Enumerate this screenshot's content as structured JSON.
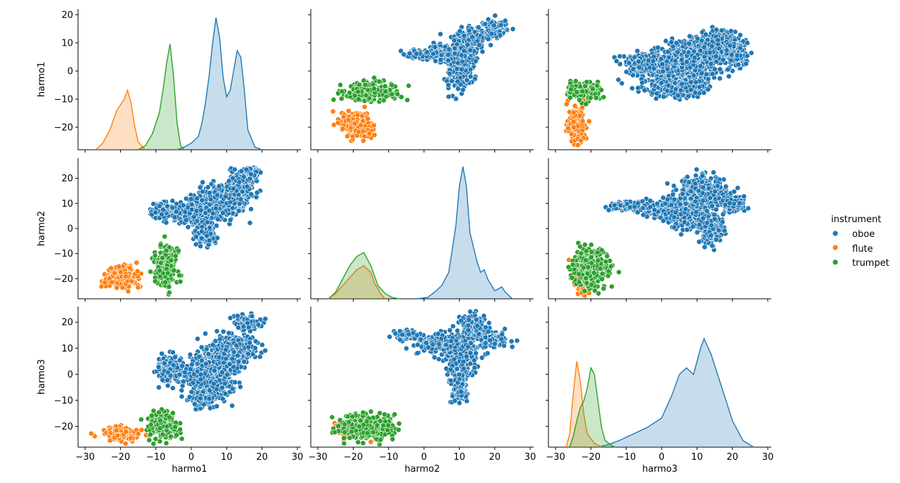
{
  "chart_data": {
    "type": "pairplot",
    "variables": [
      "harmo1",
      "harmo2",
      "harmo3"
    ],
    "hue": "instrument",
    "legend": {
      "title": "instrument",
      "placement": "right-center",
      "entries": [
        {
          "name": "oboe",
          "color": "#1f77b4"
        },
        {
          "name": "flute",
          "color": "#ff7f0e"
        },
        {
          "name": "trumpet",
          "color": "#2ca02c"
        }
      ]
    },
    "axes": {
      "x_ticks": [
        -30,
        -20,
        -10,
        0,
        10,
        20,
        30
      ],
      "harmo1": {
        "range": [
          -28,
          22
        ],
        "ticks": [
          -20,
          -10,
          0,
          10,
          20
        ]
      },
      "harmo2": {
        "range": [
          -28,
          28
        ],
        "ticks": [
          -20,
          -10,
          0,
          10,
          20
        ]
      },
      "harmo3": {
        "range": [
          -28,
          26
        ],
        "ticks": [
          -20,
          -10,
          0,
          10,
          20
        ]
      }
    },
    "diag_kde": {
      "harmo1": {
        "oboe": [
          [
            -4,
            0
          ],
          [
            -2,
            0.02
          ],
          [
            0,
            0.05
          ],
          [
            2,
            0.1
          ],
          [
            3,
            0.2
          ],
          [
            4,
            0.35
          ],
          [
            5,
            0.55
          ],
          [
            6,
            0.8
          ],
          [
            7,
            1.0
          ],
          [
            8,
            0.85
          ],
          [
            9,
            0.55
          ],
          [
            10,
            0.4
          ],
          [
            11,
            0.45
          ],
          [
            12,
            0.6
          ],
          [
            13,
            0.75
          ],
          [
            14,
            0.7
          ],
          [
            15,
            0.45
          ],
          [
            16,
            0.15
          ],
          [
            18,
            0.02
          ],
          [
            20,
            0
          ]
        ],
        "flute": [
          [
            -27,
            0
          ],
          [
            -25,
            0.05
          ],
          [
            -23,
            0.15
          ],
          [
            -21,
            0.3
          ],
          [
            -19,
            0.38
          ],
          [
            -18,
            0.45
          ],
          [
            -17,
            0.35
          ],
          [
            -16,
            0.18
          ],
          [
            -15,
            0.06
          ],
          [
            -13,
            0
          ]
        ],
        "trumpet": [
          [
            -15,
            0
          ],
          [
            -13,
            0.03
          ],
          [
            -11,
            0.12
          ],
          [
            -9,
            0.28
          ],
          [
            -8,
            0.45
          ],
          [
            -7,
            0.65
          ],
          [
            -6,
            0.8
          ],
          [
            -5,
            0.55
          ],
          [
            -4,
            0.2
          ],
          [
            -3,
            0.03
          ],
          [
            -2,
            0
          ]
        ]
      },
      "harmo2": {
        "oboe": [
          [
            -2,
            0
          ],
          [
            1,
            0.01
          ],
          [
            3,
            0.05
          ],
          [
            5,
            0.1
          ],
          [
            7,
            0.2
          ],
          [
            9,
            0.55
          ],
          [
            10,
            0.85
          ],
          [
            11,
            1.0
          ],
          [
            12,
            0.85
          ],
          [
            13,
            0.5
          ],
          [
            15,
            0.28
          ],
          [
            16,
            0.2
          ],
          [
            17,
            0.22
          ],
          [
            18,
            0.15
          ],
          [
            20,
            0.06
          ],
          [
            22,
            0.09
          ],
          [
            23,
            0.05
          ],
          [
            25,
            0
          ]
        ],
        "flute": [
          [
            -27,
            0
          ],
          [
            -25,
            0.04
          ],
          [
            -23,
            0.1
          ],
          [
            -21,
            0.16
          ],
          [
            -19,
            0.22
          ],
          [
            -17,
            0.25
          ],
          [
            -15,
            0.2
          ],
          [
            -14,
            0.12
          ],
          [
            -12,
            0.03
          ],
          [
            -11,
            0
          ]
        ],
        "trumpet": [
          [
            -27,
            0
          ],
          [
            -25,
            0.05
          ],
          [
            -23,
            0.15
          ],
          [
            -21,
            0.25
          ],
          [
            -19,
            0.32
          ],
          [
            -17,
            0.35
          ],
          [
            -15,
            0.25
          ],
          [
            -13,
            0.1
          ],
          [
            -11,
            0.04
          ],
          [
            -9,
            0.01
          ],
          [
            -7,
            0
          ]
        ]
      },
      "harmo3": {
        "oboe": [
          [
            -18,
            0
          ],
          [
            -15,
            0.02
          ],
          [
            -12,
            0.05
          ],
          [
            -8,
            0.1
          ],
          [
            -4,
            0.15
          ],
          [
            0,
            0.22
          ],
          [
            3,
            0.4
          ],
          [
            5,
            0.55
          ],
          [
            7,
            0.6
          ],
          [
            9,
            0.55
          ],
          [
            11,
            0.75
          ],
          [
            12,
            0.82
          ],
          [
            14,
            0.7
          ],
          [
            17,
            0.45
          ],
          [
            20,
            0.2
          ],
          [
            23,
            0.05
          ],
          [
            26,
            0
          ]
        ],
        "flute": [
          [
            -27,
            0
          ],
          [
            -26,
            0.1
          ],
          [
            -25,
            0.4
          ],
          [
            -24,
            0.65
          ],
          [
            -23,
            0.5
          ],
          [
            -22,
            0.25
          ],
          [
            -21,
            0.1
          ],
          [
            -19,
            0.03
          ],
          [
            -17,
            0
          ]
        ],
        "trumpet": [
          [
            -26,
            0
          ],
          [
            -25,
            0.08
          ],
          [
            -24,
            0.2
          ],
          [
            -23,
            0.3
          ],
          [
            -22,
            0.35
          ],
          [
            -21,
            0.45
          ],
          [
            -20,
            0.6
          ],
          [
            -19,
            0.55
          ],
          [
            -18,
            0.35
          ],
          [
            -17,
            0.15
          ],
          [
            -16,
            0.05
          ],
          [
            -14,
            0.01
          ],
          [
            -13,
            0
          ]
        ]
      }
    },
    "scatter_clusters": {
      "oboe": {
        "harmo1-harmo2": [
          [
            7,
            10,
            4,
            4
          ],
          [
            12,
            13,
            3,
            3
          ],
          [
            14,
            17,
            2,
            3
          ],
          [
            17,
            22,
            1.5,
            1.5
          ],
          [
            0,
            6,
            3,
            3
          ],
          [
            4,
            -2,
            1.5,
            3
          ],
          [
            -8,
            7,
            2,
            2
          ]
        ],
        "harmo1-harmo3": [
          [
            5,
            0,
            4,
            6
          ],
          [
            10,
            7,
            3,
            4
          ],
          [
            13,
            10,
            3,
            3
          ],
          [
            16,
            20,
            2,
            1.5
          ],
          [
            -6,
            2,
            2,
            3
          ],
          [
            3,
            -10,
            2,
            2
          ]
        ],
        "harmo2-harmo1": [
          [
            10,
            0,
            2,
            4
          ],
          [
            12,
            8,
            2,
            3
          ],
          [
            13,
            12,
            3,
            2
          ],
          [
            20,
            15,
            2,
            2
          ],
          [
            6,
            6,
            3,
            2
          ],
          [
            -2,
            6,
            2,
            1
          ]
        ],
        "harmo2-harmo3": [
          [
            10,
            8,
            3,
            5
          ],
          [
            10,
            -5,
            1.5,
            3
          ],
          [
            14,
            18,
            2,
            3
          ],
          [
            20,
            13,
            2,
            2
          ],
          [
            3,
            12,
            3,
            2
          ],
          [
            -5,
            15,
            2,
            1
          ]
        ],
        "harmo3-harmo1": [
          [
            2,
            0,
            6,
            4
          ],
          [
            10,
            5,
            5,
            4
          ],
          [
            16,
            10,
            3,
            3
          ],
          [
            21,
            6,
            2,
            3
          ],
          [
            -6,
            3,
            3,
            2
          ],
          [
            5,
            -6,
            4,
            2
          ]
        ],
        "harmo3-harmo2": [
          [
            -10,
            9,
            3,
            1
          ],
          [
            0,
            8,
            4,
            2
          ],
          [
            8,
            6,
            4,
            4
          ],
          [
            12,
            15,
            4,
            4
          ],
          [
            14,
            -1,
            2,
            3
          ],
          [
            20,
            10,
            2,
            2
          ]
        ]
      },
      "flute": {
        "harmo1-harmo2": [
          [
            -20,
            -19,
            3,
            3
          ]
        ],
        "harmo1-harmo3": [
          [
            -20,
            -23,
            3,
            1.5
          ]
        ],
        "harmo2-harmo1": [
          [
            -19,
            -19,
            3,
            2.5
          ]
        ],
        "harmo2-harmo3": [
          [
            -19,
            -21,
            3,
            2
          ]
        ],
        "harmo3-harmo1": [
          [
            -24,
            -19,
            1.5,
            4
          ]
        ],
        "harmo3-harmo2": [
          [
            -22,
            -18,
            2,
            4
          ]
        ]
      },
      "trumpet": {
        "harmo1-harmo2": [
          [
            -7,
            -15,
            2,
            5
          ]
        ],
        "harmo1-harmo3": [
          [
            -8,
            -20,
            2.5,
            3
          ]
        ],
        "harmo2-harmo1": [
          [
            -15,
            -7,
            5,
            2
          ]
        ],
        "harmo2-harmo3": [
          [
            -16,
            -20,
            5,
            3
          ]
        ],
        "harmo3-harmo1": [
          [
            -22,
            -7,
            3,
            2
          ]
        ],
        "harmo3-harmo2": [
          [
            -20,
            -16,
            3,
            5
          ]
        ]
      }
    }
  }
}
